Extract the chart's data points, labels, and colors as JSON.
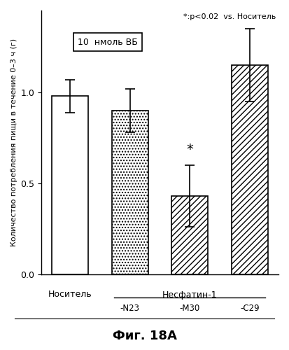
{
  "ylabel": "Количество потребления пищи в течение 0–3 ч (г)",
  "bar_values": [
    0.98,
    0.9,
    0.43,
    1.15
  ],
  "bar_errors": [
    0.09,
    0.12,
    0.17,
    0.2
  ],
  "group_labels": [
    "Носитель",
    "Несфатин-1"
  ],
  "annotation_text": "*:p<0.02  vs. Носитель",
  "box_text": "10  нмоль ВБ",
  "ylim": [
    0,
    1.45
  ],
  "yticks": [
    0,
    0.5,
    1.0
  ],
  "fig_caption": "Фиг. 18A",
  "bar_width": 0.7,
  "sub_labels": [
    "-N23",
    "-M30",
    "-C29"
  ],
  "x_positions": [
    0,
    1.15,
    2.3,
    3.45
  ]
}
